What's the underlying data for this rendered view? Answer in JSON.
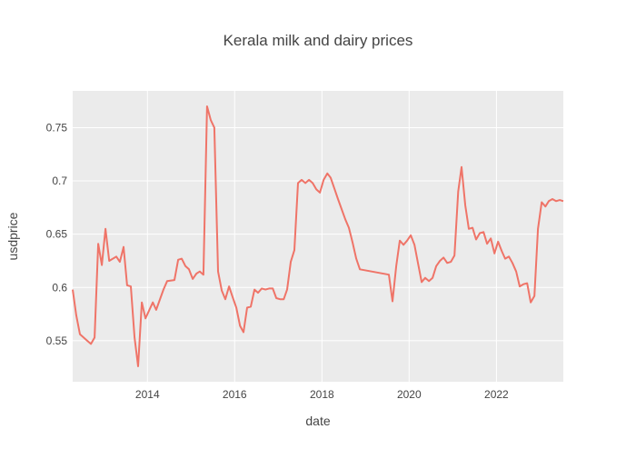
{
  "chart_data": {
    "type": "line",
    "title": "Kerala milk and dairy prices",
    "xlabel": "date",
    "ylabel": "usdprice",
    "x_tick_labels": [
      "2014",
      "2016",
      "2018",
      "2020",
      "2022"
    ],
    "y_tick_labels": [
      "0.55",
      "0.6",
      "0.65",
      "0.7",
      "0.75"
    ],
    "y_ticks": [
      0.55,
      0.6,
      0.65,
      0.7,
      0.75
    ],
    "xlim": [
      "2012-04-15",
      "2023-07-15"
    ],
    "ylim": [
      0.5115,
      0.7845
    ],
    "grid": true,
    "legend": "none",
    "colors": {
      "line": "#ef7468",
      "plot_bg": "#ebebeb",
      "grid": "#ffffff",
      "page_bg": "#ffffff"
    },
    "series": [
      {
        "x": [
          "2012-04-15",
          "2012-05-15",
          "2012-06-15",
          "2012-08-15",
          "2012-09-15",
          "2012-10-15",
          "2012-11-15",
          "2012-12-15",
          "2013-01-15",
          "2013-02-15",
          "2013-04-15",
          "2013-05-15",
          "2013-06-15",
          "2013-07-15",
          "2013-08-15",
          "2013-09-15",
          "2013-10-15",
          "2013-11-15",
          "2013-12-15",
          "2014-02-15",
          "2014-03-15",
          "2014-05-15",
          "2014-06-15",
          "2014-08-15",
          "2014-09-15",
          "2014-10-15",
          "2014-11-15",
          "2014-12-15",
          "2015-01-15",
          "2015-02-15",
          "2015-03-15",
          "2015-04-15",
          "2015-05-15",
          "2015-06-15",
          "2015-07-15",
          "2015-08-15",
          "2015-09-15",
          "2015-10-15",
          "2015-11-15",
          "2015-12-15",
          "2016-01-15",
          "2016-02-15",
          "2016-03-15",
          "2016-04-15",
          "2016-05-15",
          "2016-06-15",
          "2016-07-15",
          "2016-08-15",
          "2016-09-15",
          "2016-10-15",
          "2016-11-15",
          "2016-12-15",
          "2017-01-15",
          "2017-02-15",
          "2017-03-15",
          "2017-04-15",
          "2017-05-15",
          "2017-06-15",
          "2017-07-15",
          "2017-08-15",
          "2017-09-15",
          "2017-10-15",
          "2017-11-15",
          "2017-12-15",
          "2018-01-15",
          "2018-02-15",
          "2018-03-15",
          "2018-04-15",
          "2018-05-15",
          "2018-07-15",
          "2018-08-15",
          "2018-09-15",
          "2018-10-15",
          "2018-11-15",
          "2019-07-15",
          "2019-08-15",
          "2019-09-15",
          "2019-10-15",
          "2019-11-15",
          "2019-12-15",
          "2020-01-15",
          "2020-02-15",
          "2020-03-15",
          "2020-04-15",
          "2020-05-15",
          "2020-06-15",
          "2020-07-15",
          "2020-08-15",
          "2020-09-15",
          "2020-10-15",
          "2020-11-15",
          "2020-12-15",
          "2021-01-15",
          "2021-02-15",
          "2021-03-15",
          "2021-04-15",
          "2021-05-15",
          "2021-06-15",
          "2021-07-15",
          "2021-08-15",
          "2021-09-15",
          "2021-10-15",
          "2021-11-15",
          "2021-12-15",
          "2022-01-15",
          "2022-02-15",
          "2022-03-15",
          "2022-04-15",
          "2022-05-15",
          "2022-06-15",
          "2022-07-15",
          "2022-08-15",
          "2022-09-15",
          "2022-10-15",
          "2022-11-15",
          "2022-12-15",
          "2023-01-15",
          "2023-02-15",
          "2023-03-15",
          "2023-04-15",
          "2023-05-15",
          "2023-06-15",
          "2023-07-15"
        ],
        "y": [
          0.598,
          0.574,
          0.556,
          0.55,
          0.547,
          0.553,
          0.641,
          0.621,
          0.655,
          0.625,
          0.629,
          0.624,
          0.638,
          0.602,
          0.601,
          0.553,
          0.526,
          0.586,
          0.571,
          0.586,
          0.579,
          0.598,
          0.606,
          0.607,
          0.626,
          0.627,
          0.62,
          0.617,
          0.608,
          0.613,
          0.615,
          0.612,
          0.77,
          0.757,
          0.75,
          0.615,
          0.597,
          0.589,
          0.601,
          0.591,
          0.581,
          0.564,
          0.558,
          0.581,
          0.582,
          0.598,
          0.595,
          0.599,
          0.598,
          0.599,
          0.599,
          0.59,
          0.589,
          0.589,
          0.598,
          0.624,
          0.635,
          0.698,
          0.701,
          0.698,
          0.701,
          0.698,
          0.692,
          0.689,
          0.701,
          0.707,
          0.703,
          0.693,
          0.683,
          0.664,
          0.656,
          0.642,
          0.627,
          0.617,
          0.612,
          0.587,
          0.62,
          0.644,
          0.64,
          0.644,
          0.649,
          0.64,
          0.623,
          0.605,
          0.609,
          0.606,
          0.609,
          0.62,
          0.625,
          0.628,
          0.623,
          0.624,
          0.63,
          0.69,
          0.713,
          0.677,
          0.655,
          0.656,
          0.645,
          0.651,
          0.652,
          0.641,
          0.646,
          0.632,
          0.643,
          0.634,
          0.627,
          0.629,
          0.623,
          0.615,
          0.601,
          0.603,
          0.604,
          0.586,
          0.592,
          0.655,
          0.68,
          0.676,
          0.681,
          0.683,
          0.681,
          0.682,
          0.681
        ]
      }
    ]
  }
}
